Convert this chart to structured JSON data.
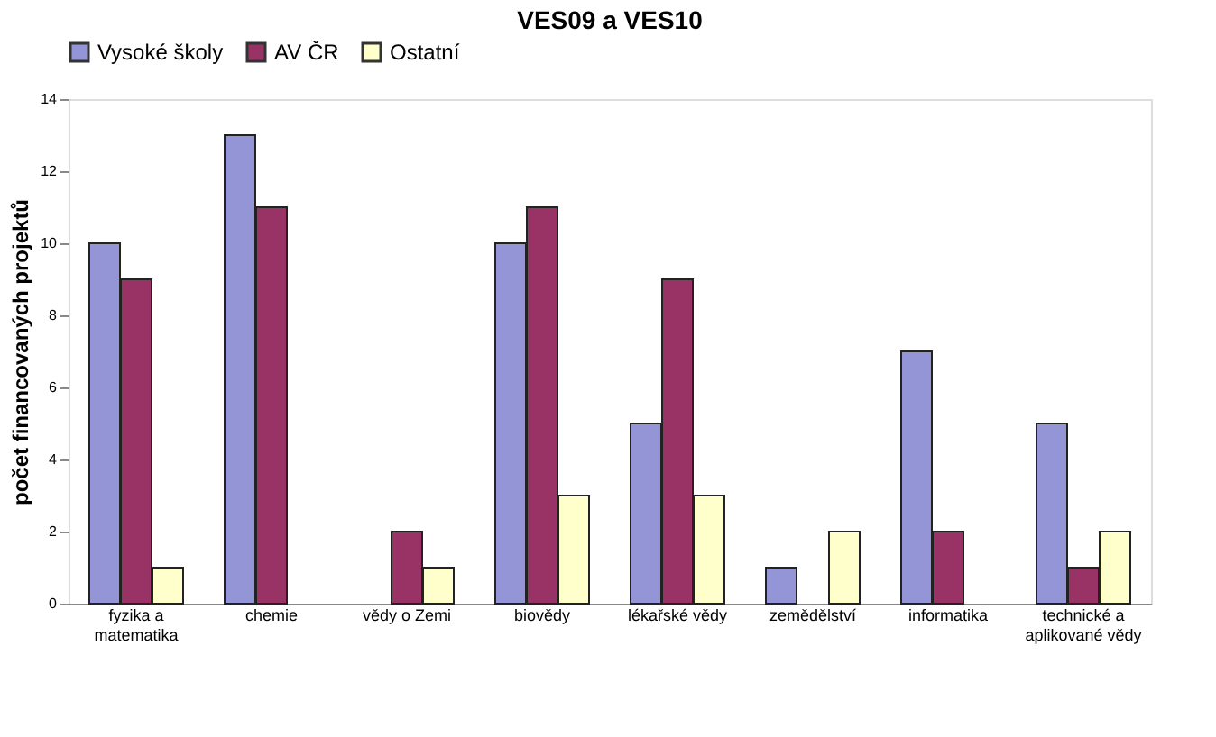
{
  "chart_data": {
    "type": "bar",
    "title": "VES09 a VES10",
    "ylabel": "počet financovaných projektů",
    "categories": [
      "fyzika a matematika",
      "chemie",
      "vědy o Zemi",
      "biovědy",
      "lékařské vědy",
      "zemědělství",
      "informatika",
      "technické a aplikované vědy"
    ],
    "series": [
      {
        "name": "Vysoké školy",
        "color": "#9395d6",
        "values": [
          10,
          13,
          0,
          10,
          5,
          1,
          7,
          5
        ]
      },
      {
        "name": "AV ČR",
        "color": "#993366",
        "values": [
          9,
          11,
          2,
          11,
          9,
          0,
          2,
          1
        ]
      },
      {
        "name": "Ostatní",
        "color": "#ffffcc",
        "values": [
          1,
          0,
          1,
          3,
          3,
          2,
          0,
          2
        ]
      }
    ],
    "ylim": [
      0,
      14
    ],
    "yticks": [
      0,
      2,
      4,
      6,
      8,
      10,
      12,
      14
    ],
    "grid": false,
    "legend": "top"
  }
}
